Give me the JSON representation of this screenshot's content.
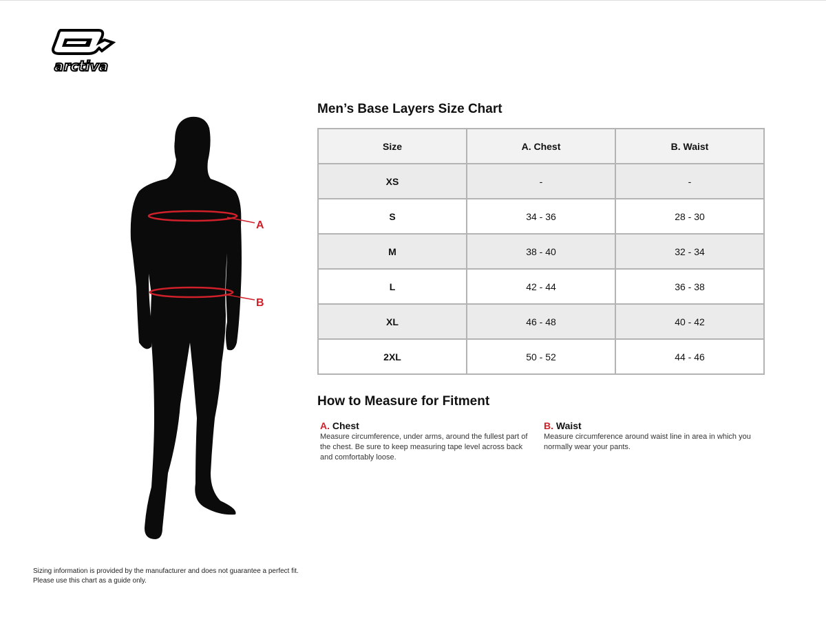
{
  "brand": {
    "logo_text": "arctiva"
  },
  "figure": {
    "marker_a": "A",
    "marker_b": "B",
    "accent_color": "#d0202a"
  },
  "chart": {
    "title": "Men’s Base Layers Size Chart",
    "headers": [
      "Size",
      "A. Chest",
      "B. Waist"
    ],
    "rows": [
      [
        "XS",
        "-",
        "-"
      ],
      [
        "S",
        "34 - 36",
        "28 - 30"
      ],
      [
        "M",
        "38 - 40",
        "32 - 34"
      ],
      [
        "L",
        "42 - 44",
        "36 - 38"
      ],
      [
        "XL",
        "46 - 48",
        "40 - 42"
      ],
      [
        "2XL",
        "50 - 52",
        "44 - 46"
      ]
    ]
  },
  "measure": {
    "title": "How to Measure for Fitment",
    "items": [
      {
        "letter": "A.",
        "label": "Chest",
        "text": "Measure circumference, under arms, around the fullest part of the chest. Be sure to keep measuring tape level across back and comfortably loose."
      },
      {
        "letter": "B.",
        "label": "Waist",
        "text": "Measure circumference around waist line in area in which you normally wear your pants."
      }
    ]
  },
  "disclaimer": [
    "Sizing information is provided by the manufacturer and does not guarantee a perfect fit.",
    "Please use this chart as a guide only."
  ]
}
